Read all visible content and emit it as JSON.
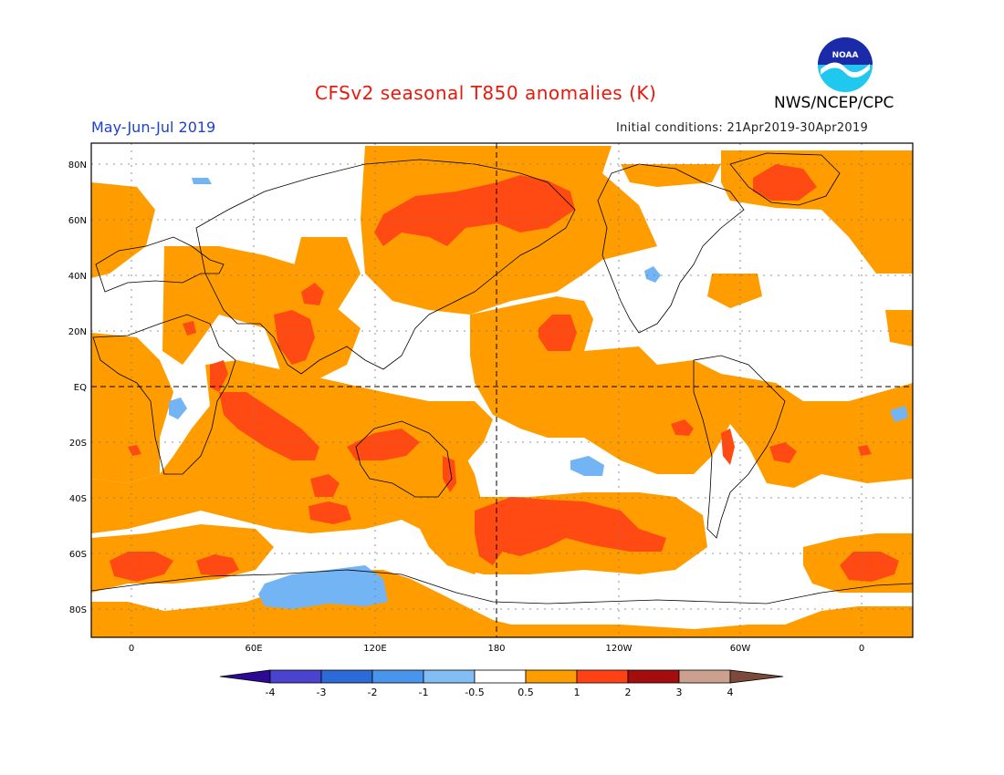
{
  "header": {
    "title": "CFSv2 seasonal T850 anomalies (K)",
    "agency": "NWS/NCEP/CPC",
    "period": "May-Jun-Jul 2019",
    "initial_conditions": "Initial conditions: 21Apr2019-30Apr2019",
    "logo_text": "NOAA"
  },
  "map": {
    "lat_labels": [
      "80N",
      "60N",
      "40N",
      "20N",
      "EQ",
      "20S",
      "40S",
      "60S",
      "80S"
    ],
    "lon_labels": [
      "0",
      "60E",
      "120E",
      "180",
      "120W",
      "60W",
      "0"
    ],
    "colors": {
      "warm1": "#ff9d00",
      "warm2": "#ff4a14",
      "cool1": "#73b4f5",
      "background": "#ffffff"
    }
  },
  "legend": {
    "tick_labels": [
      "-4",
      "-3",
      "-2",
      "-1",
      "-0.5",
      "0.5",
      "1",
      "2",
      "3",
      "4"
    ],
    "bins": [
      {
        "color": "#2c0a94"
      },
      {
        "color": "#4a43d0"
      },
      {
        "color": "#2c6ad8"
      },
      {
        "color": "#4895ee"
      },
      {
        "color": "#82bdf6"
      },
      {
        "color": "#ffffff"
      },
      {
        "color": "#ff9d00"
      },
      {
        "color": "#ff4214"
      },
      {
        "color": "#a30d0b"
      },
      {
        "color": "#cca08f"
      },
      {
        "color": "#7b4a3a"
      }
    ]
  }
}
